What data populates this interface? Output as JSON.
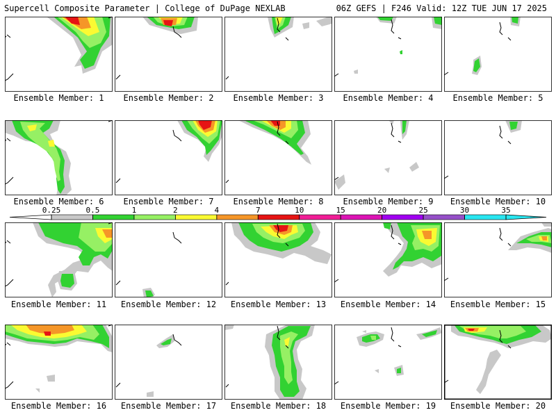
{
  "header": {
    "title_left": "Supercell Composite Parameter | College of DuPage NEXLAB",
    "title_right": "06Z GEFS | F246 Valid: 12Z TUE JUN 17 2025"
  },
  "colors": {
    "gray": "#c8c8c8",
    "green": "#32d232",
    "lightgreen": "#96f064",
    "yellow": "#fafa32",
    "orange": "#f59628",
    "red": "#e61414",
    "magenta1": "#f01e96",
    "magenta2": "#dc14b4",
    "purple1": "#a000f0",
    "purple2": "#9650c8",
    "cyan": "#28e6f0",
    "outline": "#000000"
  },
  "legend": {
    "ticks": [
      "0.25",
      "0.5",
      "1",
      "2",
      "4",
      "7",
      "10",
      "15",
      "20",
      "25",
      "30",
      "35"
    ],
    "bins": [
      "gray",
      "green",
      "lightgreen",
      "yellow",
      "orange",
      "red",
      "magenta1",
      "magenta2",
      "purple1",
      "purple2",
      "cyan"
    ]
  },
  "members": [
    {
      "label": "Ensemble Member: 1"
    },
    {
      "label": "Ensemble Member: 2"
    },
    {
      "label": "Ensemble Member: 3"
    },
    {
      "label": "Ensemble Member: 4"
    },
    {
      "label": "Ensemble Member: 5"
    },
    {
      "label": "Ensemble Member: 6"
    },
    {
      "label": "Ensemble Member: 7"
    },
    {
      "label": "Ensemble Member: 8"
    },
    {
      "label": "Ensemble Member: 9"
    },
    {
      "label": "Ensemble Member: 10"
    },
    {
      "label": "Ensemble Member: 11"
    },
    {
      "label": "Ensemble Member: 12"
    },
    {
      "label": "Ensemble Member: 13"
    },
    {
      "label": "Ensemble Member: 14"
    },
    {
      "label": "Ensemble Member: 15"
    },
    {
      "label": "Ensemble Member: 16"
    },
    {
      "label": "Ensemble Member: 17"
    },
    {
      "label": "Ensemble Member: 18"
    },
    {
      "label": "Ensemble Member: 19"
    },
    {
      "label": "Ensemble Member: 20",
      "highlighted": true
    }
  ]
}
